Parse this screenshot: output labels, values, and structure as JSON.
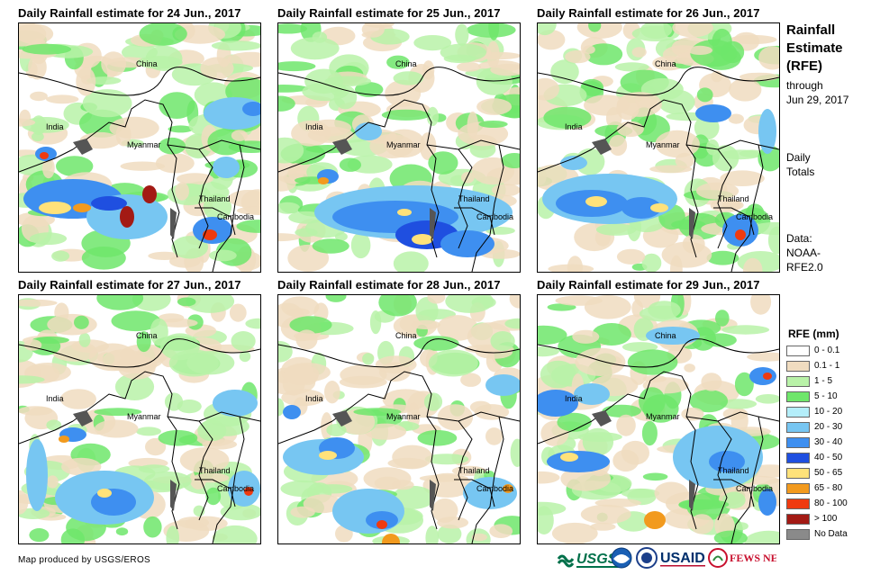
{
  "panels": [
    {
      "title": "Daily Rainfall estimate for 24 Jun., 2017"
    },
    {
      "title": "Daily Rainfall estimate for 25 Jun., 2017"
    },
    {
      "title": "Daily Rainfall estimate for 26 Jun., 2017"
    },
    {
      "title": "Daily Rainfall estimate for 27 Jun., 2017"
    },
    {
      "title": "Daily Rainfall estimate for 28 Jun., 2017"
    },
    {
      "title": "Daily Rainfall estimate for 29 Jun., 2017"
    }
  ],
  "map_labels": {
    "china": "China",
    "india": "India",
    "myanmar": "Myanmar",
    "thailand": "Thailand",
    "cambodia": "Cambodia"
  },
  "sidebar": {
    "title_line1": "Rainfall",
    "title_line2": "Estimate",
    "title_line3": "(RFE)",
    "through": "through",
    "date": "Jun 29, 2017",
    "daily": "Daily",
    "totals": "Totals",
    "data_label": "Data:",
    "data_source1": "NOAA-",
    "data_source2": "RFE2.0"
  },
  "legend": {
    "title": "RFE (mm)",
    "items": [
      {
        "label": "0 - 0.1",
        "color": "#ffffff"
      },
      {
        "label": "0.1 - 1",
        "color": "#f0dcc0"
      },
      {
        "label": "1 - 5",
        "color": "#b9f2a8"
      },
      {
        "label": "5 - 10",
        "color": "#6fe66b"
      },
      {
        "label": "10 - 20",
        "color": "#b4eefa"
      },
      {
        "label": "20 - 30",
        "color": "#77c6f2"
      },
      {
        "label": "30 - 40",
        "color": "#3e8ff0"
      },
      {
        "label": "40 - 50",
        "color": "#1f4fe0"
      },
      {
        "label": "50 - 65",
        "color": "#ffe27a"
      },
      {
        "label": "65 - 80",
        "color": "#f29a1e"
      },
      {
        "label": "80 - 100",
        "color": "#ef3a10"
      },
      {
        "label": "> 100",
        "color": "#a31a14"
      },
      {
        "label": "No Data",
        "color": "#8a8a8a"
      }
    ]
  },
  "footer": {
    "credit": "Map produced by USGS/EROS"
  },
  "logos": {
    "usgs": "USGS",
    "usaid": "USAID",
    "fewsnet": "FEWS NET"
  }
}
